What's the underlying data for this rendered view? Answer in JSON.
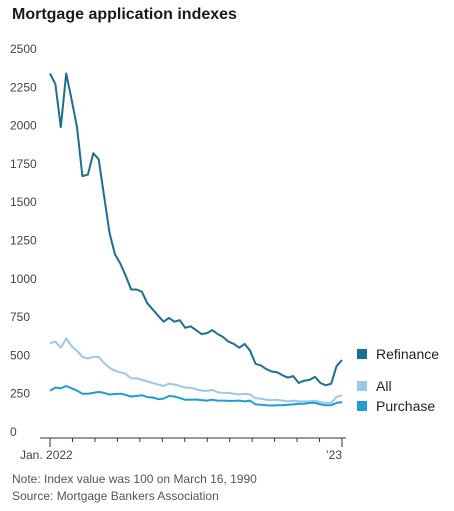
{
  "chart_data": {
    "type": "line",
    "title": "Mortgage application indexes",
    "x_tick_labels": [
      "Jan. 2022",
      "’23"
    ],
    "y_ticks": [
      0,
      250,
      500,
      750,
      1000,
      1250,
      1500,
      1750,
      2000,
      2250,
      2500
    ],
    "ylim": [
      0,
      2500
    ],
    "grid": false,
    "legend_placement": "right",
    "series": [
      {
        "name": "Refinance",
        "color": "#1b6f95",
        "values": [
          2340,
          2270,
          1990,
          2340,
          2170,
          1990,
          1670,
          1680,
          1820,
          1780,
          1540,
          1300,
          1160,
          1100,
          1020,
          930,
          930,
          915,
          840,
          800,
          760,
          720,
          745,
          720,
          730,
          680,
          690,
          665,
          640,
          645,
          665,
          640,
          620,
          590,
          575,
          550,
          575,
          530,
          445,
          435,
          410,
          395,
          390,
          370,
          355,
          365,
          320,
          335,
          340,
          360,
          320,
          305,
          315,
          430,
          470
        ]
      },
      {
        "name": "All",
        "color": "#9cc8e6",
        "values": [
          580,
          590,
          550,
          610,
          560,
          530,
          490,
          480,
          490,
          490,
          450,
          420,
          400,
          390,
          380,
          350,
          350,
          340,
          330,
          320,
          310,
          300,
          315,
          310,
          300,
          290,
          290,
          280,
          270,
          268,
          275,
          260,
          255,
          255,
          250,
          245,
          250,
          245,
          220,
          218,
          210,
          208,
          210,
          205,
          200,
          205,
          200,
          200,
          200,
          205,
          195,
          190,
          190,
          230,
          240
        ]
      },
      {
        "name": "Purchase",
        "color": "#1d9fd6",
        "values": [
          270,
          290,
          285,
          300,
          285,
          270,
          250,
          250,
          255,
          262,
          255,
          245,
          248,
          250,
          242,
          232,
          235,
          240,
          228,
          225,
          215,
          218,
          235,
          232,
          222,
          210,
          210,
          212,
          208,
          205,
          210,
          205,
          205,
          203,
          203,
          205,
          200,
          205,
          180,
          178,
          175,
          173,
          175,
          175,
          178,
          180,
          185,
          185,
          190,
          190,
          180,
          175,
          175,
          190,
          195
        ]
      }
    ],
    "notes": {
      "index_note": "Note: Index value was 100 on March 16, 1990",
      "source": "Source: Mortgage Bankers Association"
    }
  }
}
